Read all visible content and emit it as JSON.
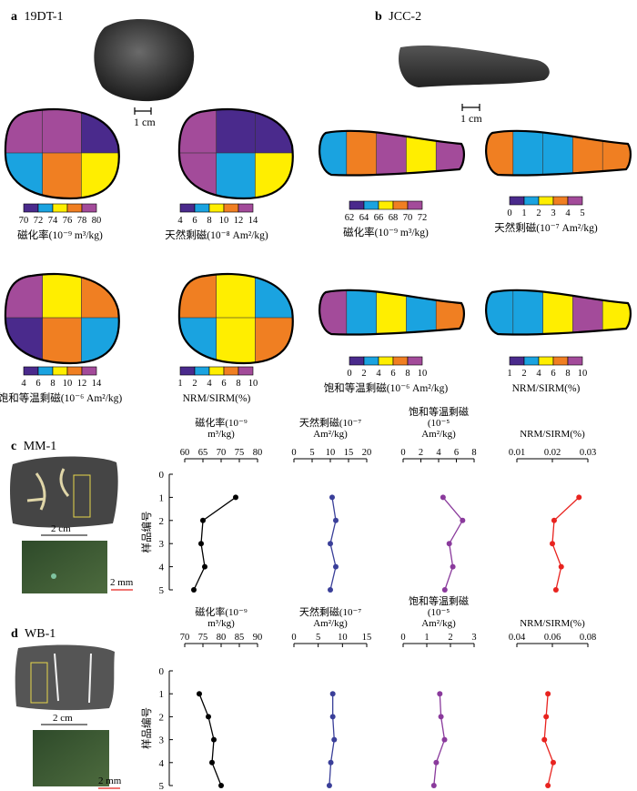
{
  "colors": {
    "c1": "#4a2a8c",
    "c2": "#1aa3e0",
    "c3": "#ffee00",
    "c4": "#f07f22",
    "c5": "#a34b9a",
    "line_black": "#000000",
    "line_blue": "#3a3f99",
    "line_purple": "#8a3a9c",
    "line_red": "#e8231f"
  },
  "panel_a": {
    "letter": "a",
    "sample": "19DT-1",
    "scale": "1 cm",
    "maps": [
      {
        "label": "磁化率(10⁻⁹ m³/kg)",
        "ticks": [
          "70",
          "72",
          "74",
          "76",
          "78",
          "80"
        ],
        "cells": [
          "c5",
          "c5",
          "c1",
          "c2",
          "c4",
          "c3"
        ]
      },
      {
        "label": "天然剩磁(10⁻⁸ Am²/kg)",
        "ticks": [
          "4",
          "6",
          "8",
          "10",
          "12",
          "14"
        ],
        "cells": [
          "c5",
          "c1",
          "c1",
          "c5",
          "c2",
          "c3"
        ]
      },
      {
        "label": "饱和等温剩磁(10⁻⁶ Am²/kg)",
        "ticks": [
          "4",
          "6",
          "8",
          "10",
          "12",
          "14"
        ],
        "cells": [
          "c5",
          "c3",
          "c4",
          "c1",
          "c4",
          "c2"
        ]
      },
      {
        "label": "NRM/SIRM(%)",
        "ticks": [
          "1",
          "2",
          "4",
          "6",
          "8",
          "10"
        ],
        "cells": [
          "c4",
          "c3",
          "c2",
          "c2",
          "c3",
          "c4"
        ]
      }
    ]
  },
  "panel_b": {
    "letter": "b",
    "sample": "JCC-2",
    "scale": "1 cm",
    "maps": [
      {
        "label": "磁化率(10⁻⁹ m³/kg)",
        "ticks": [
          "62",
          "64",
          "66",
          "68",
          "70",
          "72"
        ],
        "cells": [
          "c2",
          "c4",
          "c5",
          "c3",
          "c5"
        ]
      },
      {
        "label": "天然剩磁(10⁻⁷ Am²/kg)",
        "ticks": [
          "0",
          "1",
          "2",
          "3",
          "4",
          "5"
        ],
        "cells": [
          "c4",
          "c2",
          "c2",
          "c4",
          "c4"
        ]
      },
      {
        "label": "饱和等温剩磁(10⁻⁶ Am²/kg)",
        "ticks": [
          "0",
          "2",
          "4",
          "6",
          "8",
          "10"
        ],
        "cells": [
          "c5",
          "c2",
          "c3",
          "c2",
          "c4"
        ]
      },
      {
        "label": "NRM/SIRM(%)",
        "ticks": [
          "1",
          "2",
          "4",
          "6",
          "8",
          "10"
        ],
        "cells": [
          "c2",
          "c2",
          "c3",
          "c5",
          "c3"
        ]
      }
    ]
  },
  "panel_c": {
    "letter": "c",
    "sample": "MM-1",
    "scale1": "2 cm",
    "scale2": "2 mm",
    "y_label": "样品编号",
    "y_ticks": [
      "0",
      "1",
      "2",
      "3",
      "4",
      "5"
    ],
    "profiles": [
      {
        "title": "磁化率(10⁻⁹ m³/kg)",
        "ticks": [
          "60",
          "65",
          "70",
          "75",
          "80"
        ],
        "range": [
          60,
          80
        ],
        "values": [
          74,
          65,
          64.5,
          65.5,
          62.5
        ],
        "color": "line_black"
      },
      {
        "title": "天然剩磁(10⁻⁷ Am²/kg)",
        "ticks": [
          "0",
          "5",
          "10",
          "15",
          "20"
        ],
        "range": [
          0,
          20
        ],
        "values": [
          10.5,
          11.5,
          10,
          11.5,
          10
        ],
        "color": "line_blue"
      },
      {
        "title": "饱和等温剩磁 (10⁻⁵ Am²/kg)",
        "ticks": [
          "0",
          "2",
          "4",
          "6",
          "8"
        ],
        "range": [
          0,
          8
        ],
        "values": [
          4.5,
          6.7,
          5.2,
          5.6,
          4.7
        ],
        "color": "line_purple"
      },
      {
        "title": "NRM/SIRM(%)",
        "ticks": [
          "0.01",
          "0.02",
          "0.03"
        ],
        "range": [
          0.01,
          0.03
        ],
        "values": [
          0.0275,
          0.0205,
          0.02,
          0.0225,
          0.021
        ],
        "color": "line_red"
      }
    ]
  },
  "panel_d": {
    "letter": "d",
    "sample": "WB-1",
    "scale1": "2 cm",
    "scale2": "2 mm",
    "y_label": "样品编号",
    "y_ticks": [
      "0",
      "1",
      "2",
      "3",
      "4",
      "5"
    ],
    "profiles": [
      {
        "title": "磁化率(10⁻⁹ m³/kg)",
        "ticks": [
          "70",
          "75",
          "80",
          "85",
          "90"
        ],
        "range": [
          70,
          90
        ],
        "values": [
          74,
          76.5,
          78,
          77.5,
          80
        ],
        "color": "line_black"
      },
      {
        "title": "天然剩磁(10⁻⁷ Am²/kg)",
        "ticks": [
          "0",
          "5",
          "10",
          "15"
        ],
        "range": [
          0,
          15
        ],
        "values": [
          8,
          8,
          8.3,
          7.6,
          7.3
        ],
        "color": "line_blue"
      },
      {
        "title": "饱和等温剩磁 (10⁻⁵ Am²/kg)",
        "ticks": [
          "0",
          "1",
          "2",
          "3"
        ],
        "range": [
          0,
          3
        ],
        "values": [
          1.55,
          1.6,
          1.75,
          1.4,
          1.3
        ],
        "color": "line_purple"
      },
      {
        "title": "NRM/SIRM(%)",
        "ticks": [
          "0.04",
          "0.06",
          "0.08"
        ],
        "range": [
          0.04,
          0.08
        ],
        "values": [
          0.0575,
          0.0565,
          0.0555,
          0.0605,
          0.0575
        ],
        "color": "line_red"
      }
    ]
  }
}
